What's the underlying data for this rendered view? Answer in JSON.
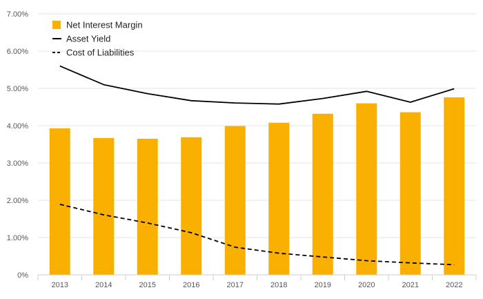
{
  "chart_data": {
    "type": "bar",
    "categories": [
      "2013",
      "2014",
      "2015",
      "2016",
      "2017",
      "2018",
      "2019",
      "2020",
      "2021",
      "2022"
    ],
    "series": [
      {
        "name": "Net Interest Margin",
        "type": "bar",
        "color": "#F9B000",
        "values": [
          3.93,
          3.67,
          3.65,
          3.69,
          3.99,
          4.08,
          4.32,
          4.6,
          4.36,
          4.76
        ]
      },
      {
        "name": "Asset Yield",
        "type": "line",
        "style": "solid",
        "color": "#000000",
        "values": [
          5.6,
          5.1,
          4.86,
          4.67,
          4.61,
          4.58,
          4.73,
          4.92,
          4.63,
          4.99
        ]
      },
      {
        "name": "Cost of Liabilities",
        "type": "line",
        "style": "dashed",
        "color": "#000000",
        "values": [
          1.89,
          1.61,
          1.39,
          1.13,
          0.74,
          0.58,
          0.48,
          0.38,
          0.32,
          0.27
        ]
      }
    ],
    "title": "",
    "xlabel": "",
    "ylabel": "",
    "ylim": [
      0,
      7
    ],
    "yticks": [
      0,
      1,
      2,
      3,
      4,
      5,
      6,
      7
    ],
    "ytick_labels": [
      "0%",
      "1.00%",
      "2.00%",
      "3.00%",
      "4.00%",
      "5.00%",
      "6.00%",
      "7.00%"
    ],
    "grid": "horizontal",
    "legend_position": "top-left"
  }
}
